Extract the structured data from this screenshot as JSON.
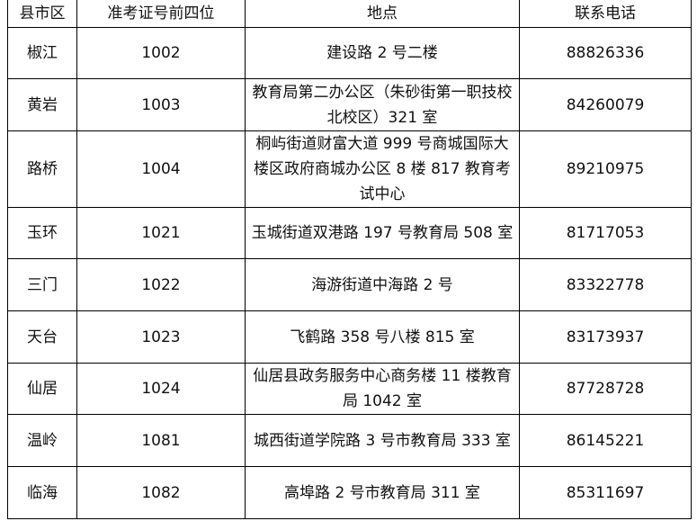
{
  "headers": [
    "县市区",
    "准考证号前四位",
    "地点",
    "联系电话"
  ],
  "rows": [
    {
      "county": "椒江",
      "prefix": "1002",
      "address": "建设路 2 号二楼",
      "phone": "88826336"
    },
    {
      "county": "黄岩",
      "prefix": "1003",
      "address": "教育局第二办公区（朱砂街第一职技校北校区）321 室",
      "phone": "84260079"
    },
    {
      "county": "路桥",
      "prefix": "1004",
      "address": "桐屿街道财富大道 999 号商城国际大楼区政府商城办公区 8 楼 817 教育考试中心",
      "phone": "89210975"
    },
    {
      "county": "玉环",
      "prefix": "1021",
      "address": "玉城街道双港路 197 号教育局 508 室",
      "phone": "81717053"
    },
    {
      "county": "三门",
      "prefix": "1022",
      "address": "海游街道中海路 2 号",
      "phone": "83322778"
    },
    {
      "county": "天台",
      "prefix": "1023",
      "address": "飞鹤路 358 号八楼 815 室",
      "phone": "83173937"
    },
    {
      "county": "仙居",
      "prefix": "1024",
      "address": "仙居县政务服务中心商务楼 11 楼教育局 1042 室",
      "phone": "87728728"
    },
    {
      "county": "温岭",
      "prefix": "1081",
      "address": "城西街道学院路 3 号市教育局 333 室",
      "phone": "86145221"
    },
    {
      "county": "临海",
      "prefix": "1082",
      "address": "高埠路 2 号市教育局 311 室",
      "phone": "85311697"
    }
  ]
}
